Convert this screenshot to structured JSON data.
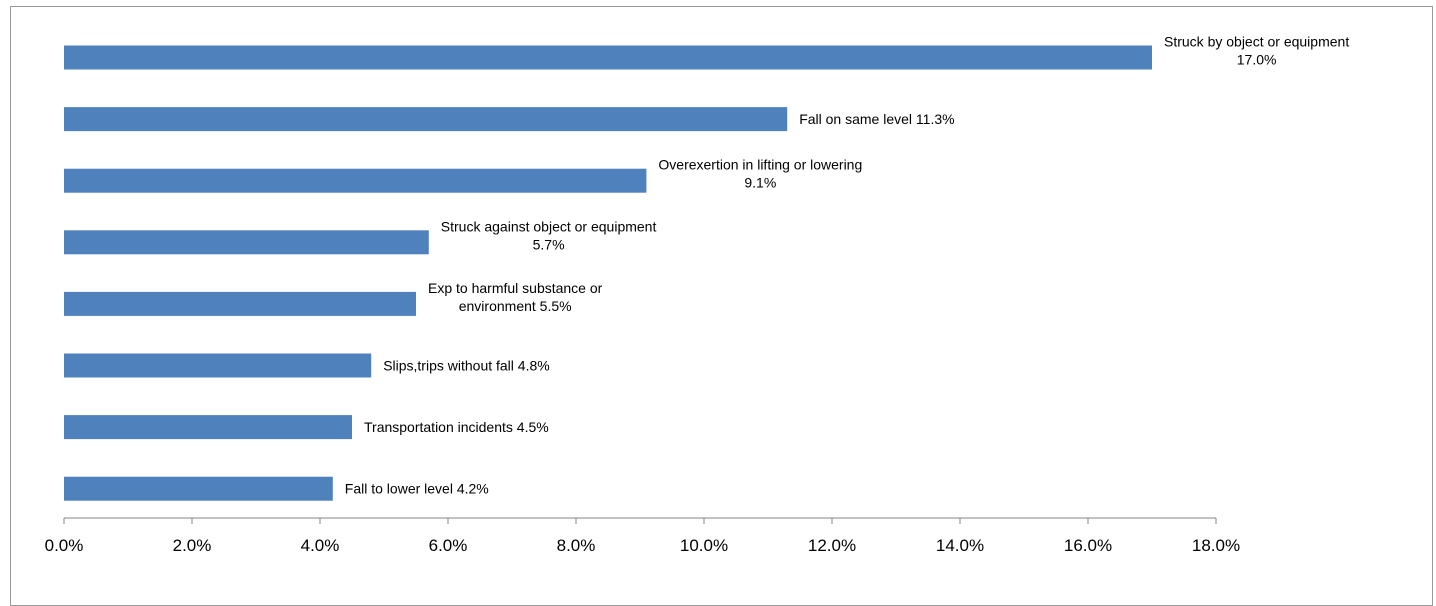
{
  "chart_data": {
    "type": "bar",
    "orientation": "horizontal",
    "categories": [
      "Struck by object or equipment",
      "Fall on same level",
      "Overexertion in lifting or lowering",
      "Struck against object or equipment",
      "Exp to harmful substance or environment",
      "Slips,trips without fall",
      "Transportation incidents",
      "Fall to lower level"
    ],
    "values": [
      17.0,
      11.3,
      9.1,
      5.7,
      5.5,
      4.8,
      4.5,
      4.2
    ],
    "data_labels": [
      [
        "Struck by object or equipment",
        "17.0%"
      ],
      [
        "Fall on same level 11.3%"
      ],
      [
        "Overexertion in lifting or lowering",
        "9.1%"
      ],
      [
        "Struck against object or equipment",
        "5.7%"
      ],
      [
        "Exp to harmful substance or",
        "environment 5.5%"
      ],
      [
        "Slips,trips without fall 4.8%"
      ],
      [
        "Transportation incidents 4.5%"
      ],
      [
        "Fall to lower level 4.2%"
      ]
    ],
    "x_ticks": [
      "0.0%",
      "2.0%",
      "4.0%",
      "6.0%",
      "8.0%",
      "10.0%",
      "12.0%",
      "14.0%",
      "16.0%",
      "18.0%"
    ],
    "xlim": [
      0,
      18
    ],
    "x_major_unit": 2,
    "title": "",
    "xlabel": "",
    "ylabel": "",
    "grid": false,
    "legend": "none",
    "bar_color": "#4f81bd"
  }
}
